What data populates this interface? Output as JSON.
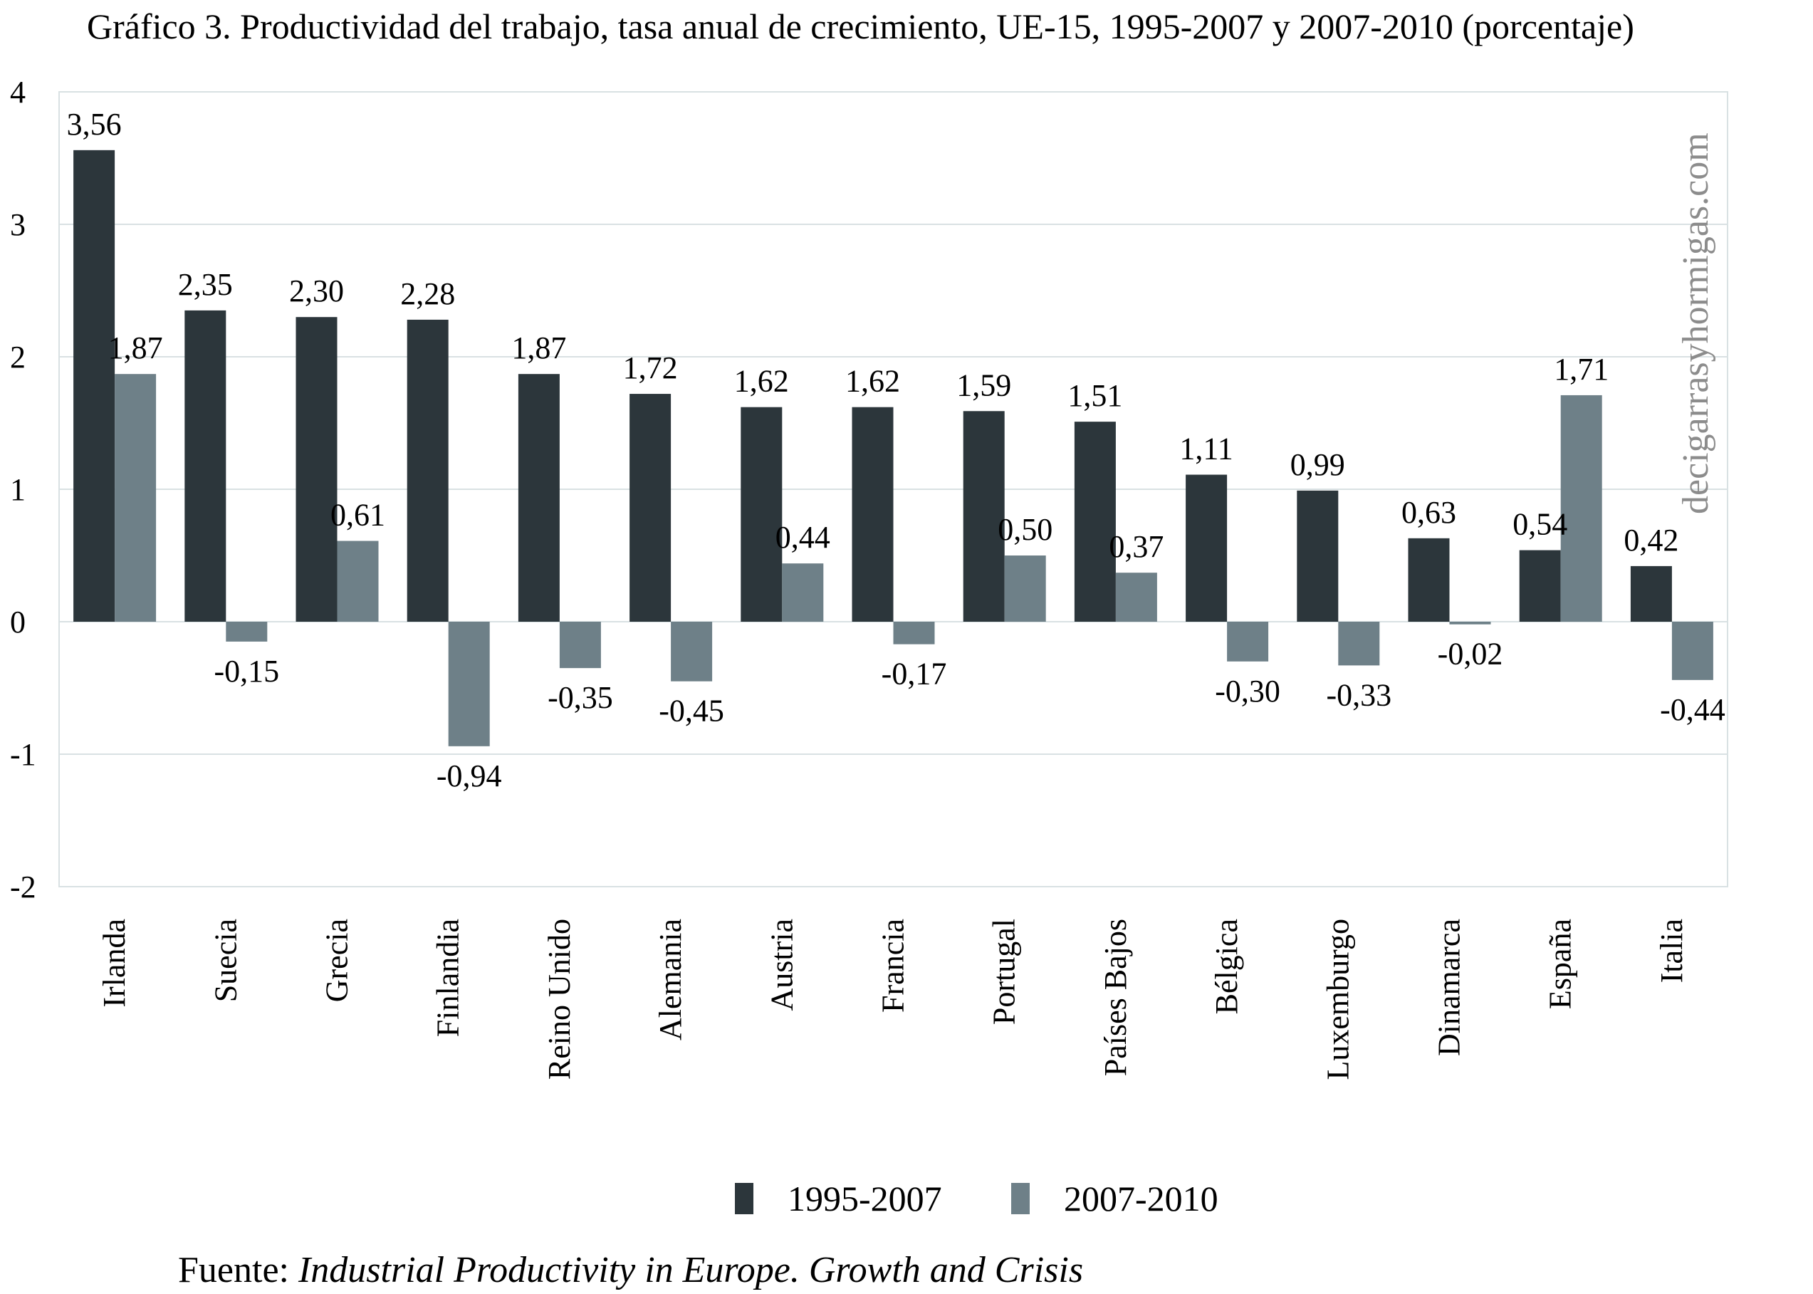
{
  "chart_data": {
    "type": "bar",
    "title": "Gráfico 3. Productividad del trabajo, tasa anual de crecimiento, UE-15, 1995-2007 y 2007-2010 (porcentaje)",
    "xlabel": "",
    "ylabel": "",
    "ylim": [
      -2,
      4
    ],
    "yticks": [
      4,
      3,
      2,
      1,
      0,
      -1,
      -2
    ],
    "grid": true,
    "legend_position": "bottom-center",
    "decimal_separator": ",",
    "categories": [
      "Irlanda",
      "Suecia",
      "Grecia",
      "Finlandia",
      "Reino Unido",
      "Alemania",
      "Austria",
      "Francia",
      "Portugal",
      "Países Bajos",
      "Bélgica",
      "Luxemburgo",
      "Dinamarca",
      "España",
      "Italia"
    ],
    "series": [
      {
        "name": "1995-2007",
        "color": "#2c363b",
        "values": [
          3.56,
          2.35,
          2.3,
          2.28,
          1.87,
          1.72,
          1.62,
          1.62,
          1.59,
          1.51,
          1.11,
          0.99,
          0.63,
          0.54,
          0.42
        ],
        "labels": [
          "3,56",
          "2,35",
          "2,30",
          "2,28",
          "1,87",
          "1,72",
          "1,62",
          "1,62",
          "1,59",
          "1,51",
          "1,11",
          "0,99",
          "0,63",
          "0,54",
          "0,42"
        ]
      },
      {
        "name": "2007-2010",
        "color": "#6e8088",
        "values": [
          1.87,
          -0.15,
          0.61,
          -0.94,
          -0.35,
          -0.45,
          0.44,
          -0.17,
          0.5,
          0.37,
          -0.3,
          -0.33,
          -0.02,
          1.71,
          -0.44
        ],
        "labels": [
          "1,87",
          "-0,15",
          "0,61",
          "-0,94",
          "-0,35",
          "-0,45",
          "0,44",
          "-0,17",
          "0,50",
          "0,37",
          "-0,30",
          "-0,33",
          "-0,02",
          "1,71",
          "-0,44"
        ]
      }
    ],
    "source_prefix": "Fuente: ",
    "source_title": "Industrial Productivity in Europe. Growth and Crisis",
    "watermark": "decigarrasyhormigas.com",
    "gridline_color": "#d9e1e3"
  }
}
